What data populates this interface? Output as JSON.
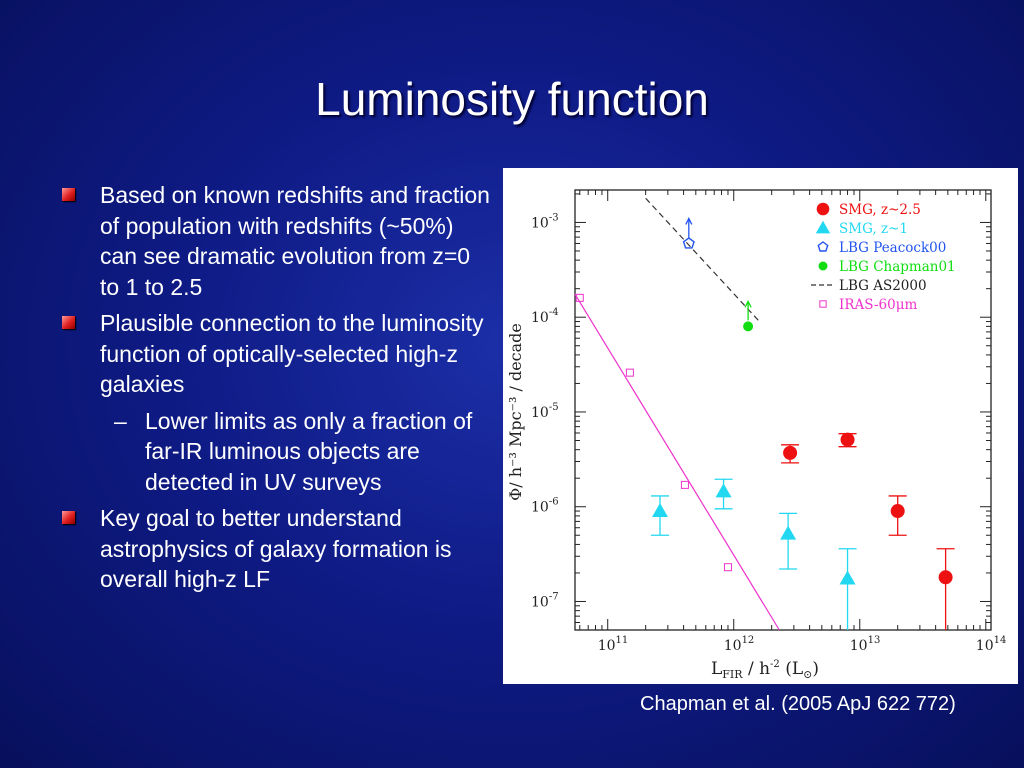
{
  "slide": {
    "title": "Luminosity function",
    "bullets": [
      "Based on known redshifts and fraction of population with redshifts (~50%) can see dramatic evolution from z=0 to 1 to 2.5",
      "Plausible connection to the luminosity function of optically-selected high-z galaxies",
      "Key goal to better understand astrophysics of galaxy formation is overall high-z LF"
    ],
    "sub_bullet": "Lower limits as only a fraction of far-IR luminous objects are detected in UV surveys",
    "sub_dash": "–",
    "caption": "Chapman et al. (2005 ApJ 622 772)"
  },
  "chart_data": {
    "type": "scatter",
    "xscale": "log",
    "yscale": "log",
    "xlim": [
      55000000000.0,
      110000000000000.0
    ],
    "ylim": [
      5e-08,
      0.0022
    ],
    "xlabel": {
      "pre": "L",
      "sub": "FIR",
      "mid": " / h",
      "sup": "-2",
      "post": " (L",
      "sun_sub": "⊙",
      "end": ")"
    },
    "ylabel": "Φ/ h⁻³ Mpc⁻³ / decade",
    "xticks": [
      {
        "value": 100000000000.0,
        "label": "10",
        "exp": "11"
      },
      {
        "value": 1000000000000.0,
        "label": "10",
        "exp": "12"
      },
      {
        "value": 10000000000000.0,
        "label": "10",
        "exp": "13"
      },
      {
        "value": 100000000000000.0,
        "label": "10",
        "exp": "14"
      }
    ],
    "yticks": [
      {
        "value": 0.001,
        "label": "10",
        "exp": "-3"
      },
      {
        "value": 0.0001,
        "label": "10",
        "exp": "-4"
      },
      {
        "value": 1e-05,
        "label": "10",
        "exp": "-5"
      },
      {
        "value": 1e-06,
        "label": "10",
        "exp": "-6"
      },
      {
        "value": 1e-07,
        "label": "10",
        "exp": "-7"
      }
    ],
    "series": [
      {
        "name": "SMG, z~2.5",
        "marker": "circle",
        "color": "#ee1111",
        "points": [
          {
            "x": 2800000000000.0,
            "y": 3.7e-06,
            "lo": 2.9e-06,
            "hi": 4.5e-06
          },
          {
            "x": 8000000000000.0,
            "y": 5.1e-06,
            "lo": 4.3e-06,
            "hi": 5.9e-06
          },
          {
            "x": 20000000000000.0,
            "y": 9e-07,
            "lo": 5e-07,
            "hi": 1.3e-06
          },
          {
            "x": 48000000000000.0,
            "y": 1.8e-07,
            "lo": 5e-08,
            "hi": 3.6e-07
          }
        ]
      },
      {
        "name": "SMG, z~1",
        "marker": "triangle",
        "color": "#22d8f0",
        "points": [
          {
            "x": 260000000000.0,
            "y": 9e-07,
            "lo": 5e-07,
            "hi": 1.3e-06
          },
          {
            "x": 830000000000.0,
            "y": 1.45e-06,
            "lo": 9.5e-07,
            "hi": 1.95e-06
          },
          {
            "x": 2700000000000.0,
            "y": 5.2e-07,
            "lo": 2.2e-07,
            "hi": 8.5e-07
          },
          {
            "x": 8000000000000.0,
            "y": 1.75e-07,
            "lo": 5e-08,
            "hi": 3.6e-07
          }
        ]
      },
      {
        "name": "LBG Peacock00",
        "marker": "pentagon",
        "color": "#2255ee",
        "points": [
          {
            "x": 440000000000.0,
            "y": 0.0006,
            "arrow": "up"
          }
        ]
      },
      {
        "name": "LBG Chapman01",
        "marker": "circle-small",
        "color": "#11dd11",
        "points": [
          {
            "x": 1300000000000.0,
            "y": 8e-05,
            "arrow": "up"
          }
        ]
      },
      {
        "name": "LBG AS2000",
        "marker": "dashed-line",
        "color": "#333333",
        "line": [
          {
            "x": 200000000000.0,
            "y": 0.0018
          },
          {
            "x": 1600000000000.0,
            "y": 9e-05
          }
        ]
      },
      {
        "name": "IRAS-60μm",
        "marker": "square-open",
        "color": "#ee33cc",
        "line": [
          {
            "x": 55000000000.0,
            "y": 0.000175
          },
          {
            "x": 2300000000000.0,
            "y": 5e-08
          }
        ],
        "points": [
          {
            "x": 60000000000.0,
            "y": 0.00016
          },
          {
            "x": 150000000000.0,
            "y": 2.6e-05
          },
          {
            "x": 410000000000.0,
            "y": 1.7e-06
          },
          {
            "x": 900000000000.0,
            "y": 2.3e-07
          }
        ]
      }
    ],
    "legend": "top-right"
  }
}
